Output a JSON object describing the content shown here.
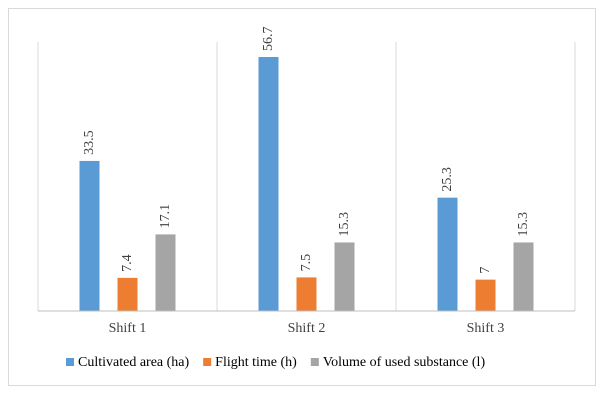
{
  "chart_data": {
    "type": "bar",
    "title": "",
    "xlabel": "",
    "ylabel": "",
    "categories": [
      "Shift 1",
      "Shift 2",
      "Shift 3"
    ],
    "series": [
      {
        "name": "Cultivated area (ha)",
        "values": [
          33.5,
          56.7,
          25.3
        ],
        "color": "#5b9bd5"
      },
      {
        "name": "Flight time (h)",
        "values": [
          7.4,
          7.5,
          7
        ],
        "color": "#ed7d31"
      },
      {
        "name": "Volume of used substance (l)",
        "values": [
          17.1,
          15.3,
          15.3
        ],
        "color": "#a5a5a5"
      }
    ],
    "ylim": [
      0,
      56.7
    ],
    "grid": false,
    "category_separators": true,
    "legend_position": "bottom"
  }
}
